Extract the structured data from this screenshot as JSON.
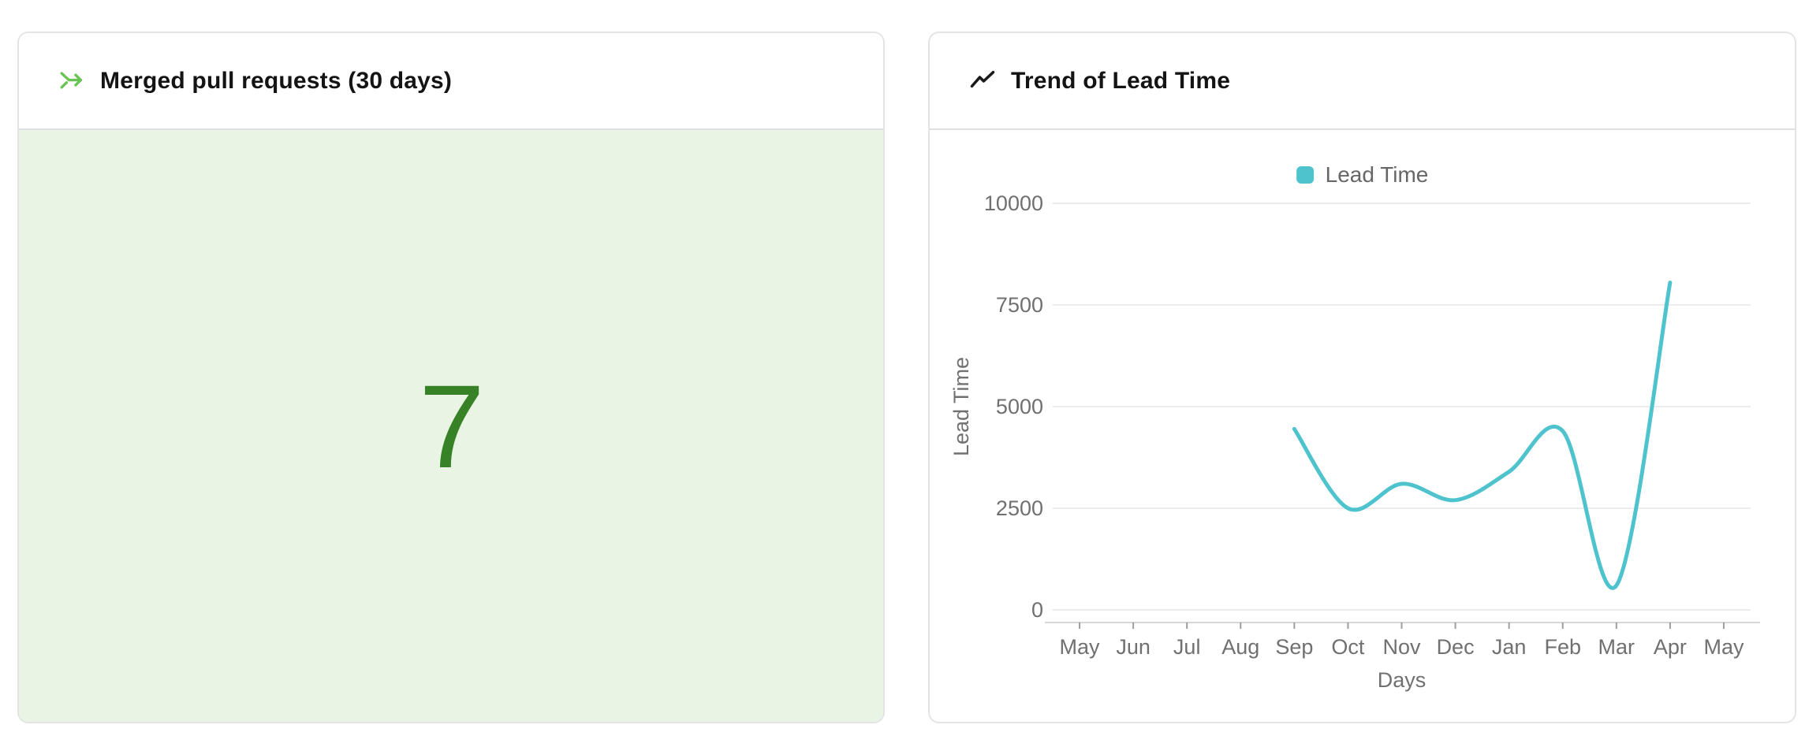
{
  "ui": {
    "page_background": "#ffffff",
    "panel_border_color": "#e4e4e4",
    "divider_color": "#e0e0e0",
    "merge_icon_color": "#68c554",
    "trend_icon_color": "#1a1a1a",
    "axis_text_color": "#707070",
    "legend_text_color": "#666666",
    "gridline_color": "#ececec",
    "axis_line_color": "#d7d7d7"
  },
  "chart_data": [
    {
      "type": "stat",
      "title": "Merged pull requests (30 days)",
      "value": 7,
      "value_color": "#378226",
      "background": "#e9f4e5"
    },
    {
      "type": "line",
      "title": "Trend of Lead Time",
      "xlabel": "Days",
      "ylabel": "Lead Time",
      "categories": [
        "May",
        "Jun",
        "Jul",
        "Aug",
        "Sep",
        "Oct",
        "Nov",
        "Dec",
        "Jan",
        "Feb",
        "Mar",
        "Apr",
        "May"
      ],
      "series": [
        {
          "name": "Lead Time",
          "color": "#4ec3ce",
          "values": [
            null,
            null,
            null,
            null,
            4450,
            2500,
            3100,
            2700,
            3400,
            4400,
            600,
            8050,
            null
          ]
        }
      ],
      "ylim": [
        0,
        10000
      ],
      "yticks": [
        0,
        2500,
        5000,
        7500,
        10000
      ],
      "grid": true,
      "smooth": true,
      "legend_position": "top-center"
    }
  ]
}
